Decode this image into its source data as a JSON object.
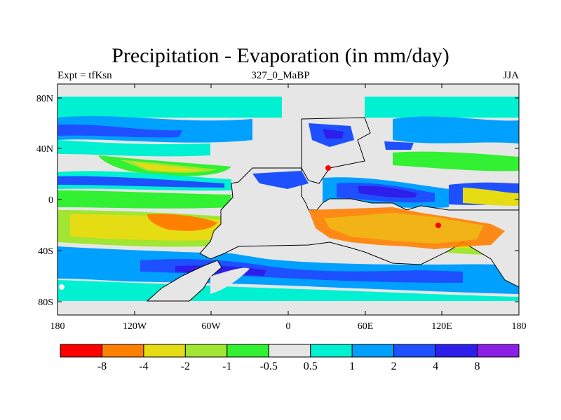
{
  "map": {
    "title": "Precipitation - Evaporation (in mm/day)",
    "subtitle_left": "Expt = tfKsn",
    "subtitle_center": "327_0_MaBP",
    "subtitle_right": "JJA",
    "lat_ticks": [
      "80N",
      "40N",
      "0",
      "40S",
      "80S"
    ],
    "lon_ticks": [
      "180",
      "120W",
      "60W",
      "0",
      "60E",
      "120E",
      "180"
    ],
    "colorbar": {
      "colors": [
        "#ff0000",
        "#ff8000",
        "#e6dc14",
        "#a0e632",
        "#32f032",
        "#e6e6e6",
        "#00f0d2",
        "#00a0ff",
        "#1e50ff",
        "#2d1eeb",
        "#8c1ee6"
      ],
      "labels": [
        "-8",
        "-4",
        "-2",
        "-1",
        "-0.5",
        "0.5",
        "1",
        "2",
        "4",
        "8"
      ]
    }
  }
}
